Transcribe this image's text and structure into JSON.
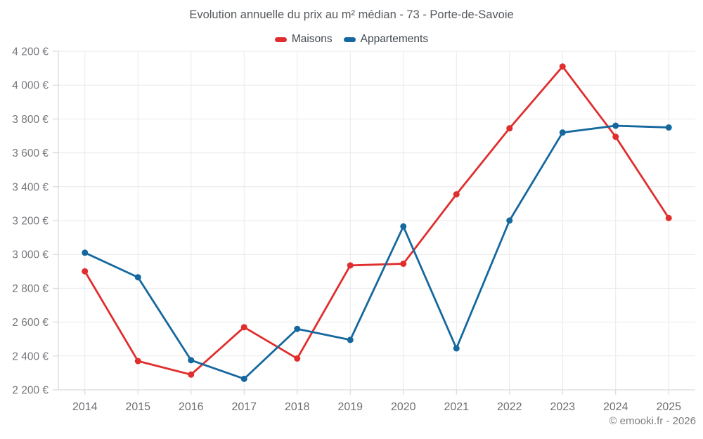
{
  "footer": {
    "copyright": "© emooki.fr - 2026"
  },
  "chart_data": {
    "type": "line",
    "title": "Evolution annuelle du prix au m² médian - 73 - Porte-de-Savoie",
    "categories": [
      "2014",
      "2015",
      "2016",
      "2017",
      "2018",
      "2019",
      "2020",
      "2021",
      "2022",
      "2023",
      "2024",
      "2025"
    ],
    "series": [
      {
        "name": "Maisons",
        "color": "#e02e2e",
        "values": [
          2900,
          2370,
          2290,
          2570,
          2385,
          2935,
          2945,
          3355,
          3745,
          4110,
          3695,
          3215
        ]
      },
      {
        "name": "Appartements",
        "color": "#15689e",
        "values": [
          3010,
          2865,
          2375,
          2265,
          2560,
          2495,
          3165,
          2445,
          3200,
          3720,
          3760,
          3750
        ]
      }
    ],
    "xlabel": "",
    "ylabel": "",
    "ylim": [
      2200,
      4200
    ],
    "y_ticks": [
      2200,
      2400,
      2600,
      2800,
      3000,
      3200,
      3400,
      3600,
      3800,
      4000,
      4200
    ],
    "y_tick_labels": [
      "2 200 €",
      "2 400 €",
      "2 600 €",
      "2 800 €",
      "3 000 €",
      "3 200 €",
      "3 400 €",
      "3 600 €",
      "3 800 €",
      "4 000 €",
      "4 200 €"
    ],
    "grid": true,
    "legend_position": "top",
    "colors": {
      "grid": "#e9e9e9",
      "axis": "#d2d2d2",
      "marker_radius": 4.5,
      "line_width": 2.8
    }
  }
}
